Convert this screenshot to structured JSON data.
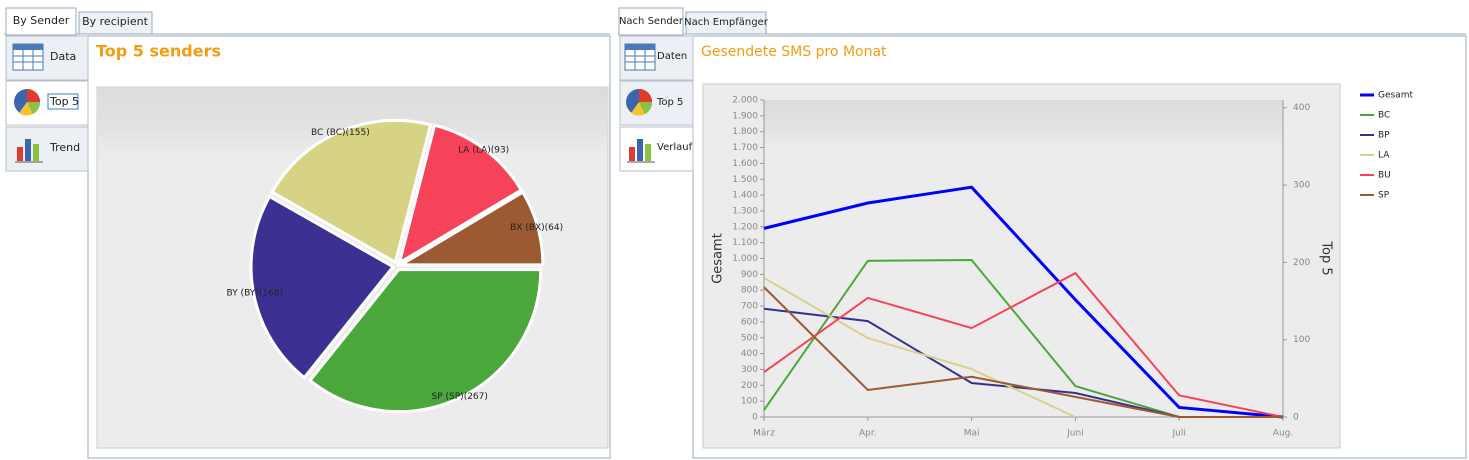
{
  "ui": {
    "left": {
      "tabs": [
        "By Sender",
        "By recipient"
      ],
      "side_tabs": [
        "Data",
        "Top 5",
        "Trend"
      ]
    },
    "right": {
      "tabs": [
        "Nach Sender",
        "Nach Empfänger"
      ],
      "side_tabs": [
        "Daten",
        "Top 5",
        "Verlauf"
      ]
    }
  },
  "chart_data": [
    {
      "type": "pie",
      "title": "Top 5 senders",
      "categories": [
        "SP (SP)(267)",
        "BY (BY)(168)",
        "BC (BC)(155)",
        "LA (LA)(93)",
        "BX (BX)(64)"
      ],
      "values": [
        267,
        168,
        155,
        93,
        64
      ],
      "colors": [
        "#4aa83a",
        "#3c3193",
        "#d6d384",
        "#f7435a",
        "#9b5a32"
      ]
    },
    {
      "type": "line",
      "title": "Gesendete SMS pro Monat",
      "categories": [
        "März",
        "Apr.",
        "Mai",
        "Juni",
        "Juli",
        "Aug."
      ],
      "ylabel": "Gesamt",
      "y2label": "Top 5",
      "legend": "right",
      "ylim": [
        0,
        2000
      ],
      "yticks": [
        0,
        100,
        200,
        300,
        400,
        500,
        600,
        700,
        800,
        900,
        {
          "value": 1000,
          "label": "1.000"
        },
        {
          "value": 1100,
          "label": "1.100"
        },
        {
          "value": 1200,
          "label": "1.200"
        },
        {
          "value": 1300,
          "label": "1.300"
        },
        {
          "value": 1400,
          "label": "1.400"
        },
        {
          "value": 1500,
          "label": "1.500"
        },
        {
          "value": 1600,
          "label": "1.600"
        },
        {
          "value": 1700,
          "label": "1.700"
        },
        {
          "value": 1800,
          "label": "1.800"
        },
        {
          "value": 1900,
          "label": "1.900"
        },
        {
          "value": 2000,
          "label": "2.000"
        }
      ],
      "y2lim": [
        0,
        410
      ],
      "y2ticks": [
        0,
        100,
        200,
        300,
        400
      ],
      "series": [
        {
          "name": "Gesamt",
          "color": "#0000ff",
          "values": [
            1190,
            1350,
            1450,
            740,
            60,
            0
          ]
        },
        {
          "name": "BC",
          "color": "#4aa83a",
          "axis": "y2",
          "values": [
            9,
            202,
            203,
            40,
            0,
            0
          ]
        },
        {
          "name": "BP",
          "color": "#35308f",
          "axis": "y2",
          "values": [
            140,
            124,
            44,
            31,
            0,
            0
          ]
        },
        {
          "name": "LA",
          "color": "#d9d08e",
          "axis": "y2",
          "values": [
            180,
            102,
            62,
            0,
            null,
            null
          ]
        },
        {
          "name": "BU",
          "color": "#f7435a",
          "axis": "y2",
          "values": [
            58,
            154,
            115,
            186,
            28,
            0
          ]
        },
        {
          "name": "SP",
          "color": "#9b5a32",
          "axis": "y2",
          "values": [
            168,
            35,
            52,
            26,
            0,
            0
          ]
        }
      ]
    }
  ]
}
